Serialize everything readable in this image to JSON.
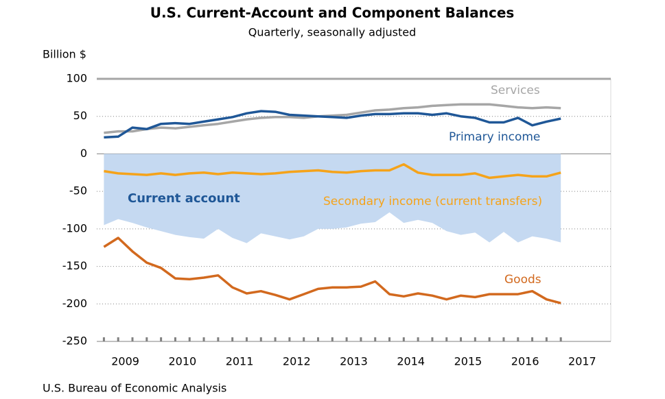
{
  "chart_data": {
    "type": "line",
    "title": "U.S. Current-Account and Component Balances",
    "subtitle": "Quarterly, seasonally adjusted",
    "y_axis_label": "Billion $",
    "source": "U.S. Bureau of Economic Analysis",
    "x": [
      2009.125,
      2009.375,
      2009.625,
      2009.875,
      2010.125,
      2010.375,
      2010.625,
      2010.875,
      2011.125,
      2011.375,
      2011.625,
      2011.875,
      2012.125,
      2012.375,
      2012.625,
      2012.875,
      2013.125,
      2013.375,
      2013.625,
      2013.875,
      2014.125,
      2014.375,
      2014.625,
      2014.875,
      2015.125,
      2015.375,
      2015.625,
      2015.875,
      2016.125,
      2016.375,
      2016.625,
      2016.875,
      2017.125
    ],
    "xlim": [
      2009,
      2018
    ],
    "xticks": [
      {
        "value": 2009.5,
        "label": "2009"
      },
      {
        "value": 2010.5,
        "label": "2010"
      },
      {
        "value": 2011.5,
        "label": "2011"
      },
      {
        "value": 2012.5,
        "label": "2012"
      },
      {
        "value": 2013.5,
        "label": "2013"
      },
      {
        "value": 2014.5,
        "label": "2014"
      },
      {
        "value": 2015.5,
        "label": "2015"
      },
      {
        "value": 2016.5,
        "label": "2016"
      },
      {
        "value": 2017.5,
        "label": "2017"
      }
    ],
    "ylim": [
      -250,
      100
    ],
    "yticks": [
      -250,
      -200,
      -150,
      -100,
      -50,
      0,
      50,
      100
    ],
    "grid": true,
    "series": [
      {
        "name": "Current account",
        "style": "area",
        "color": "#c5d9f1",
        "label_color": "#1f5797",
        "values": [
          -95,
          -87,
          -92,
          -98,
          -103,
          -108,
          -111,
          -113,
          -100,
          -112,
          -119,
          -106,
          -110,
          -114,
          -110,
          -100,
          -100,
          -98,
          -93,
          -91,
          -78,
          -92,
          -88,
          -92,
          -103,
          -108,
          -105,
          -118,
          -104,
          -118,
          -110,
          -113,
          -118
        ]
      },
      {
        "name": "Services",
        "style": "line",
        "color": "#a6a6a6",
        "values": [
          28,
          30,
          30,
          33,
          35,
          34,
          36,
          38,
          40,
          43,
          46,
          48,
          49,
          49,
          48,
          50,
          51,
          52,
          55,
          58,
          59,
          61,
          62,
          64,
          65,
          66,
          66,
          66,
          64,
          62,
          61,
          62,
          61
        ]
      },
      {
        "name": "Primary income",
        "style": "line",
        "color": "#1f5797",
        "values": [
          22,
          23,
          35,
          33,
          40,
          41,
          40,
          43,
          46,
          49,
          54,
          57,
          56,
          52,
          51,
          50,
          49,
          48,
          51,
          53,
          53,
          54,
          54,
          52,
          54,
          50,
          48,
          42,
          42,
          48,
          38,
          43,
          47
        ]
      },
      {
        "name": "Secondary income (current transfers)",
        "style": "line",
        "color": "#f5a31a",
        "values": [
          -23,
          -26,
          -27,
          -28,
          -26,
          -28,
          -26,
          -25,
          -27,
          -25,
          -26,
          -27,
          -26,
          -24,
          -23,
          -22,
          -24,
          -25,
          -23,
          -22,
          -22,
          -14,
          -25,
          -28,
          -28,
          -28,
          -26,
          -32,
          -30,
          -28,
          -30,
          -30,
          -25
        ]
      },
      {
        "name": "Goods",
        "style": "line",
        "color": "#d2691e",
        "values": [
          -124,
          -112,
          -130,
          -145,
          -152,
          -166,
          -167,
          -165,
          -162,
          -178,
          -186,
          -183,
          -188,
          -194,
          -187,
          -180,
          -178,
          -178,
          -177,
          -170,
          -187,
          -190,
          -186,
          -189,
          -194,
          -189,
          -191,
          -187,
          -187,
          -187,
          -183,
          -194,
          -199
        ]
      }
    ]
  }
}
